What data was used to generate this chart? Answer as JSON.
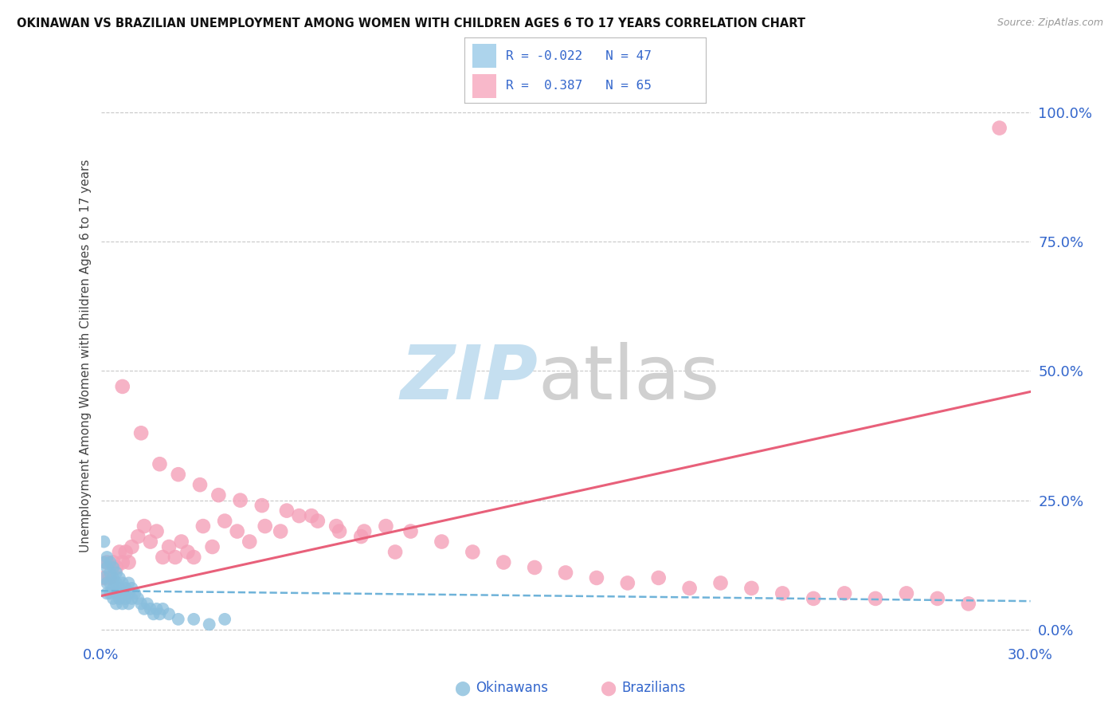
{
  "title": "OKINAWAN VS BRAZILIAN UNEMPLOYMENT AMONG WOMEN WITH CHILDREN AGES 6 TO 17 YEARS CORRELATION CHART",
  "source": "Source: ZipAtlas.com",
  "ylabel": "Unemployment Among Women with Children Ages 6 to 17 years",
  "ylabel_right_labels": [
    "0.0%",
    "25.0%",
    "50.0%",
    "75.0%",
    "100.0%"
  ],
  "ylabel_right_values": [
    0.0,
    0.25,
    0.5,
    0.75,
    1.0
  ],
  "xmin": 0.0,
  "xmax": 0.3,
  "ymin": -0.02,
  "ymax": 1.08,
  "okinawan_color": "#89bedd",
  "brazilian_color": "#f4a0b8",
  "legend_R_okinawan": "-0.022",
  "legend_N_okinawan": "47",
  "legend_R_brazilian": "0.387",
  "legend_N_brazilian": "65",
  "okinawan_x": [
    0.001,
    0.001,
    0.001,
    0.002,
    0.002,
    0.002,
    0.002,
    0.003,
    0.003,
    0.003,
    0.003,
    0.004,
    0.004,
    0.004,
    0.004,
    0.005,
    0.005,
    0.005,
    0.005,
    0.006,
    0.006,
    0.006,
    0.007,
    0.007,
    0.007,
    0.008,
    0.008,
    0.009,
    0.009,
    0.009,
    0.01,
    0.01,
    0.011,
    0.012,
    0.013,
    0.014,
    0.015,
    0.016,
    0.017,
    0.018,
    0.019,
    0.02,
    0.022,
    0.025,
    0.03,
    0.035,
    0.04
  ],
  "okinawan_y": [
    0.17,
    0.13,
    0.1,
    0.14,
    0.12,
    0.09,
    0.07,
    0.13,
    0.11,
    0.09,
    0.07,
    0.12,
    0.1,
    0.08,
    0.06,
    0.11,
    0.09,
    0.07,
    0.05,
    0.1,
    0.08,
    0.06,
    0.09,
    0.07,
    0.05,
    0.08,
    0.06,
    0.09,
    0.07,
    0.05,
    0.08,
    0.06,
    0.07,
    0.06,
    0.05,
    0.04,
    0.05,
    0.04,
    0.03,
    0.04,
    0.03,
    0.04,
    0.03,
    0.02,
    0.02,
    0.01,
    0.02
  ],
  "brazilian_x": [
    0.001,
    0.002,
    0.003,
    0.004,
    0.005,
    0.006,
    0.007,
    0.008,
    0.009,
    0.01,
    0.012,
    0.014,
    0.016,
    0.018,
    0.02,
    0.022,
    0.024,
    0.026,
    0.028,
    0.03,
    0.033,
    0.036,
    0.04,
    0.044,
    0.048,
    0.053,
    0.058,
    0.064,
    0.07,
    0.077,
    0.084,
    0.092,
    0.1,
    0.11,
    0.12,
    0.13,
    0.14,
    0.15,
    0.16,
    0.17,
    0.18,
    0.19,
    0.2,
    0.21,
    0.22,
    0.23,
    0.24,
    0.25,
    0.26,
    0.27,
    0.28,
    0.007,
    0.013,
    0.019,
    0.025,
    0.032,
    0.038,
    0.045,
    0.052,
    0.06,
    0.068,
    0.076,
    0.085,
    0.095,
    0.29
  ],
  "brazilian_y": [
    0.1,
    0.13,
    0.1,
    0.13,
    0.12,
    0.15,
    0.13,
    0.15,
    0.13,
    0.16,
    0.18,
    0.2,
    0.17,
    0.19,
    0.14,
    0.16,
    0.14,
    0.17,
    0.15,
    0.14,
    0.2,
    0.16,
    0.21,
    0.19,
    0.17,
    0.2,
    0.19,
    0.22,
    0.21,
    0.19,
    0.18,
    0.2,
    0.19,
    0.17,
    0.15,
    0.13,
    0.12,
    0.11,
    0.1,
    0.09,
    0.1,
    0.08,
    0.09,
    0.08,
    0.07,
    0.06,
    0.07,
    0.06,
    0.07,
    0.06,
    0.05,
    0.47,
    0.38,
    0.32,
    0.3,
    0.28,
    0.26,
    0.25,
    0.24,
    0.23,
    0.22,
    0.2,
    0.19,
    0.15,
    0.97
  ],
  "trend_oki_x0": 0.0,
  "trend_oki_x1": 0.3,
  "trend_oki_y0": 0.075,
  "trend_oki_y1": 0.055,
  "trend_bra_x0": 0.0,
  "trend_bra_x1": 0.3,
  "trend_bra_y0": 0.065,
  "trend_bra_y1": 0.46
}
